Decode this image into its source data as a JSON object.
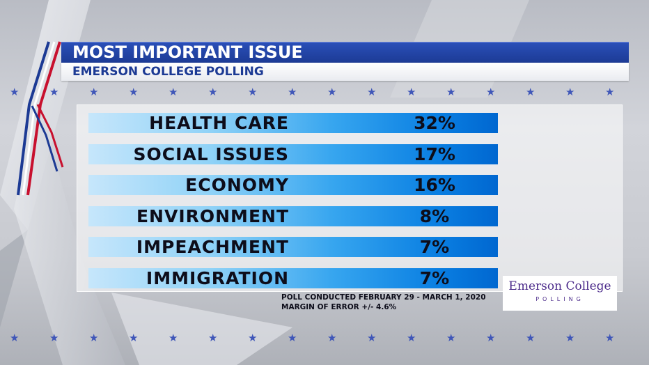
{
  "header": {
    "title": "MOST IMPORTANT ISSUE",
    "subtitle": "EMERSON COLLEGE POLLING"
  },
  "chart_data": {
    "type": "table",
    "title": "MOST IMPORTANT ISSUE",
    "categories": [
      "HEALTH CARE",
      "SOCIAL ISSUES",
      "ECONOMY",
      "ENVIRONMENT",
      "IMPEACHMENT",
      "IMMIGRATION"
    ],
    "values": [
      32,
      17,
      16,
      8,
      7,
      7
    ],
    "value_labels": [
      "32%",
      "17%",
      "16%",
      "8%",
      "7%",
      "7%"
    ],
    "unit": "%"
  },
  "notes": {
    "poll_dates": "POLL CONDUCTED FEBRUARY 29 - MARCH 1, 2020",
    "margin": "MARGIN OF ERROR +/- 4.6%"
  },
  "logo": {
    "name": "Emerson College",
    "sub": "POLLING"
  },
  "colors": {
    "header_blue": "#1c3a94",
    "bar_dark": "#0067d0",
    "bar_light": "#c6e6fb",
    "star_blue": "#3f56b8",
    "logo_purple": "#4b2a8a",
    "accent_red": "#c8102e"
  },
  "icons": [
    "star-icon"
  ]
}
